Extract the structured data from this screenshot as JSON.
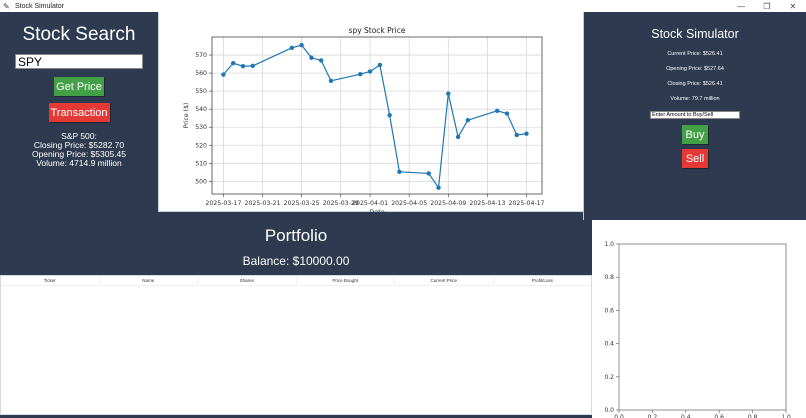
{
  "window": {
    "title": "Stock Simulator",
    "controls": {
      "minimize": "—",
      "maximize": "❐",
      "close": "✕"
    }
  },
  "search": {
    "title": "Stock Search",
    "input_value": "SPY",
    "get_price_label": "Get Price",
    "transaction_label": "Transaction",
    "sp500": {
      "label": "S&P 500:",
      "closing": "Closing Price: $5282.70",
      "opening": "Opening Price: $5305.45",
      "volume": "Volume: 4714.9 million"
    }
  },
  "simulator": {
    "title": "Stock Simulator",
    "current_price": "Current Price: $526.41",
    "opening_price": "Opening Price: $527.64",
    "closing_price": "Closing Price: $526.41",
    "volume": "Volume: 79.7 million",
    "amount_placeholder": "Enter Amount to Buy/Sell",
    "buy_label": "Buy",
    "sell_label": "Sell"
  },
  "portfolio": {
    "title": "Portfolio",
    "balance": "Balance: $10000.00",
    "columns": [
      "Ticker",
      "Name",
      "Shares",
      "Price Bought",
      "Current Price",
      "Profit/Loss"
    ],
    "rows": []
  },
  "colors": {
    "background": "#2e3a4f",
    "green_button": "#43a047",
    "red_button": "#e53935",
    "line": "#1f77b4"
  },
  "chart_data": [
    {
      "type": "line",
      "title": "spy Stock Price",
      "xlabel": "Date",
      "ylabel": "Price ($)",
      "x": [
        "2025-03-17",
        "2025-03-18",
        "2025-03-19",
        "2025-03-20",
        "2025-03-24",
        "2025-03-25",
        "2025-03-26",
        "2025-03-27",
        "2025-03-28",
        "2025-03-31",
        "2025-04-01",
        "2025-04-02",
        "2025-04-03",
        "2025-04-04",
        "2025-04-07",
        "2025-04-08",
        "2025-04-09",
        "2025-04-10",
        "2025-04-11",
        "2025-04-14",
        "2025-04-15",
        "2025-04-16",
        "2025-04-17"
      ],
      "series": [
        {
          "name": "spy",
          "values": [
            559.2,
            565.5,
            563.8,
            564.0,
            574.0,
            575.5,
            568.5,
            567.0,
            555.7,
            559.4,
            560.9,
            564.5,
            536.7,
            505.3,
            504.4,
            496.5,
            548.6,
            524.6,
            533.9,
            539.1,
            537.6,
            525.7,
            526.4
          ]
        }
      ],
      "x_ticks": [
        "2025-03-17",
        "2025-03-21",
        "2025-03-25",
        "2025-03-29",
        "2025-04-01",
        "2025-04-05",
        "2025-04-09",
        "2025-04-13",
        "2025-04-17"
      ],
      "y_ticks": [
        500,
        510,
        520,
        530,
        540,
        550,
        560,
        570
      ],
      "ylim": [
        493,
        580
      ],
      "grid": true,
      "marker": "o"
    },
    {
      "type": "pie",
      "title": "",
      "values": [],
      "x_ticks": [
        "0.0",
        "0.2",
        "0.4",
        "0.6",
        "0.8",
        "1.0"
      ],
      "y_ticks": [
        "0.0",
        "0.2",
        "0.4",
        "0.6",
        "0.8",
        "1.0"
      ],
      "xlim": [
        0,
        1
      ],
      "ylim": [
        0,
        1
      ]
    }
  ]
}
